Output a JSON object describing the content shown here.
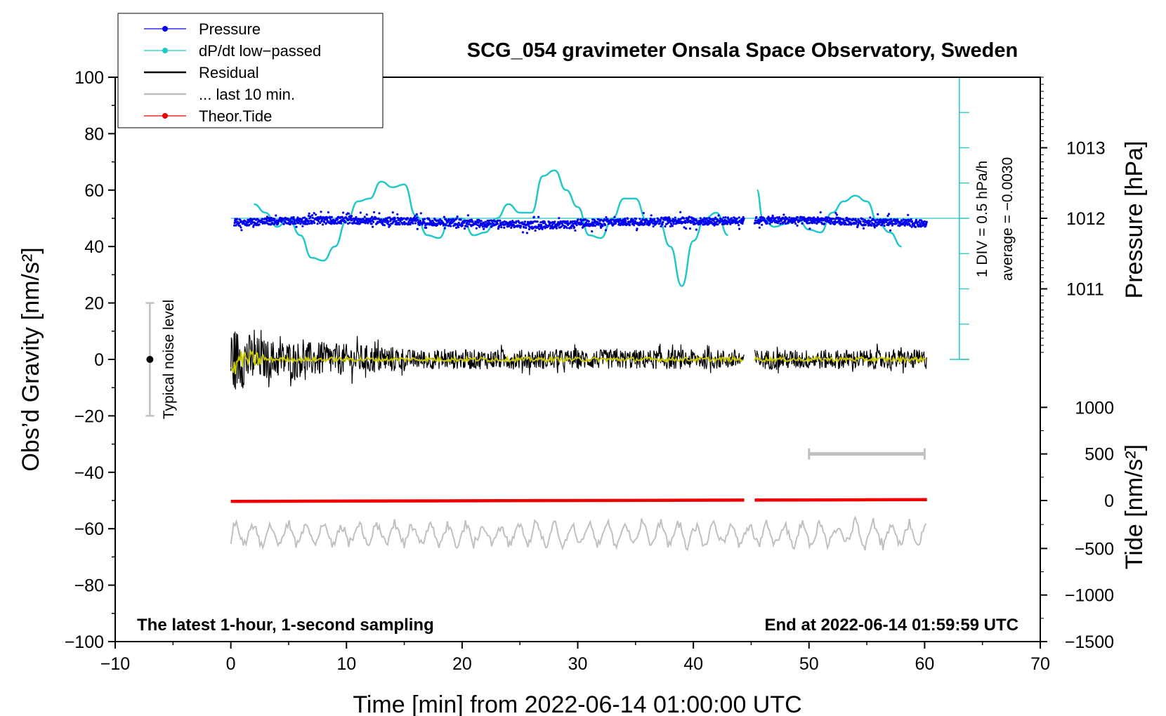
{
  "chart_data": {
    "type": "line",
    "title": "SCG_054 gravimeter Onsala Space Observatory, Sweden",
    "subtitle_left": "The latest 1-hour, 1-second sampling",
    "subtitle_right": "End at 2022-06-14 01:59:59 UTC",
    "xlabel": "Time [min] from 2022-06-14 01:00:00 UTC",
    "ylabel_left": "Obs’d Gravity [nm/s²]",
    "ylabel_pressure": "Pressure [hPa]",
    "ylabel_tide": "Tide [nm/s²]",
    "xlim": [
      -10,
      70
    ],
    "ylim": [
      -100,
      100
    ],
    "x_ticks": [
      "−10",
      "0",
      "10",
      "20",
      "30",
      "40",
      "50",
      "60",
      "70"
    ],
    "x_tick_values": [
      -10,
      0,
      10,
      20,
      30,
      40,
      50,
      60,
      70
    ],
    "y_ticks": [
      "−100",
      "−80",
      "−60",
      "−40",
      "−20",
      "0",
      "20",
      "40",
      "60",
      "80",
      "100"
    ],
    "y_tick_values": [
      -100,
      -80,
      -60,
      -40,
      -20,
      0,
      20,
      40,
      60,
      80,
      100
    ],
    "pressure_ticks": [
      {
        "label": "1011",
        "y": 25
      },
      {
        "label": "1012",
        "y": 50
      },
      {
        "label": "1013",
        "y": 75
      }
    ],
    "tide_ticks": [
      {
        "label": "1000",
        "y": -17
      },
      {
        "label": "500",
        "y": -33.5
      },
      {
        "label": "0",
        "y": -50
      },
      {
        "label": "−500",
        "y": -67
      },
      {
        "label": "−1000",
        "y": -83.5
      },
      {
        "label": "−1500",
        "y": -100
      }
    ],
    "legend": [
      {
        "label": "Pressure",
        "color": "#0000ee",
        "marker": "dot"
      },
      {
        "label": "dP/dt low−passed",
        "color": "#20c8c8",
        "marker": "dot"
      },
      {
        "label": "Residual",
        "color": "#000000",
        "marker": "line"
      },
      {
        "label": "... last 10 min.",
        "color": "#c0c0c0",
        "marker": "line"
      },
      {
        "label": "Theor.Tide",
        "color": "#ee0000",
        "marker": "dot"
      }
    ],
    "noise_label": "Typical noise level",
    "noise_range": [
      -20,
      20
    ],
    "noise_x": -7,
    "dpdt_scale_label": "1 DIV = 0.5 hPa/h",
    "dpdt_average_label": "average = −0.0030",
    "dpdt_axis_x": 63,
    "dpdt_axis_range": [
      0,
      100
    ],
    "dpdt_baseline": 50,
    "last10_bar": {
      "x": [
        50,
        60
      ],
      "y": -33.5
    },
    "gap": [
      44.4,
      45.3
    ],
    "series": [
      {
        "name": "Pressure",
        "color": "#0000ee",
        "x_range": [
          0.3,
          60.2
        ],
        "level": 48.5,
        "spread": 1.8
      },
      {
        "name": "dP/dt low−passed",
        "color": "#20c8c8",
        "x": [
          2,
          3,
          4,
          5,
          6,
          7,
          8,
          9,
          10,
          11,
          12,
          13,
          14,
          15,
          16,
          17,
          18,
          19,
          20,
          21,
          22,
          23,
          24,
          25,
          26,
          27,
          28,
          29,
          30,
          31,
          32,
          33,
          34,
          35,
          36,
          37,
          38,
          39,
          40,
          41,
          42,
          43
        ],
        "y": [
          55,
          52,
          47,
          50,
          44,
          36,
          35,
          40,
          49,
          56,
          57,
          63,
          61,
          62,
          51,
          44,
          43,
          50,
          50,
          44,
          45,
          50,
          55,
          52,
          52,
          65,
          67,
          60,
          54,
          44,
          43,
          50,
          57,
          57,
          49,
          49,
          40,
          26,
          42,
          50,
          52,
          44
        ],
        "x2": [
          45.5,
          46,
          47,
          48,
          49,
          50,
          51,
          52,
          53,
          54,
          55,
          56,
          57,
          58
        ],
        "y2": [
          60,
          50,
          47,
          48,
          50,
          46,
          45,
          52,
          56,
          58,
          56,
          48,
          45,
          40
        ]
      },
      {
        "name": "Residual",
        "color": "#000000",
        "x_range": [
          0,
          60.2
        ],
        "level": 0,
        "amplitude_start": 12,
        "amplitude_end": 3.5
      },
      {
        "name": "Residual smoothed",
        "color": "#c8c800",
        "x_range": [
          0,
          60.2
        ],
        "level": 0
      },
      {
        "name": "Theor.Tide",
        "color": "#ee0000",
        "x": [
          0,
          60.2
        ],
        "y": [
          -50.3,
          -49.7
        ]
      },
      {
        "name": "... last 10 min.",
        "color": "#c0c0c0",
        "x_range": [
          0,
          60.2
        ],
        "level": -62,
        "amplitude": 3.5
      }
    ]
  }
}
